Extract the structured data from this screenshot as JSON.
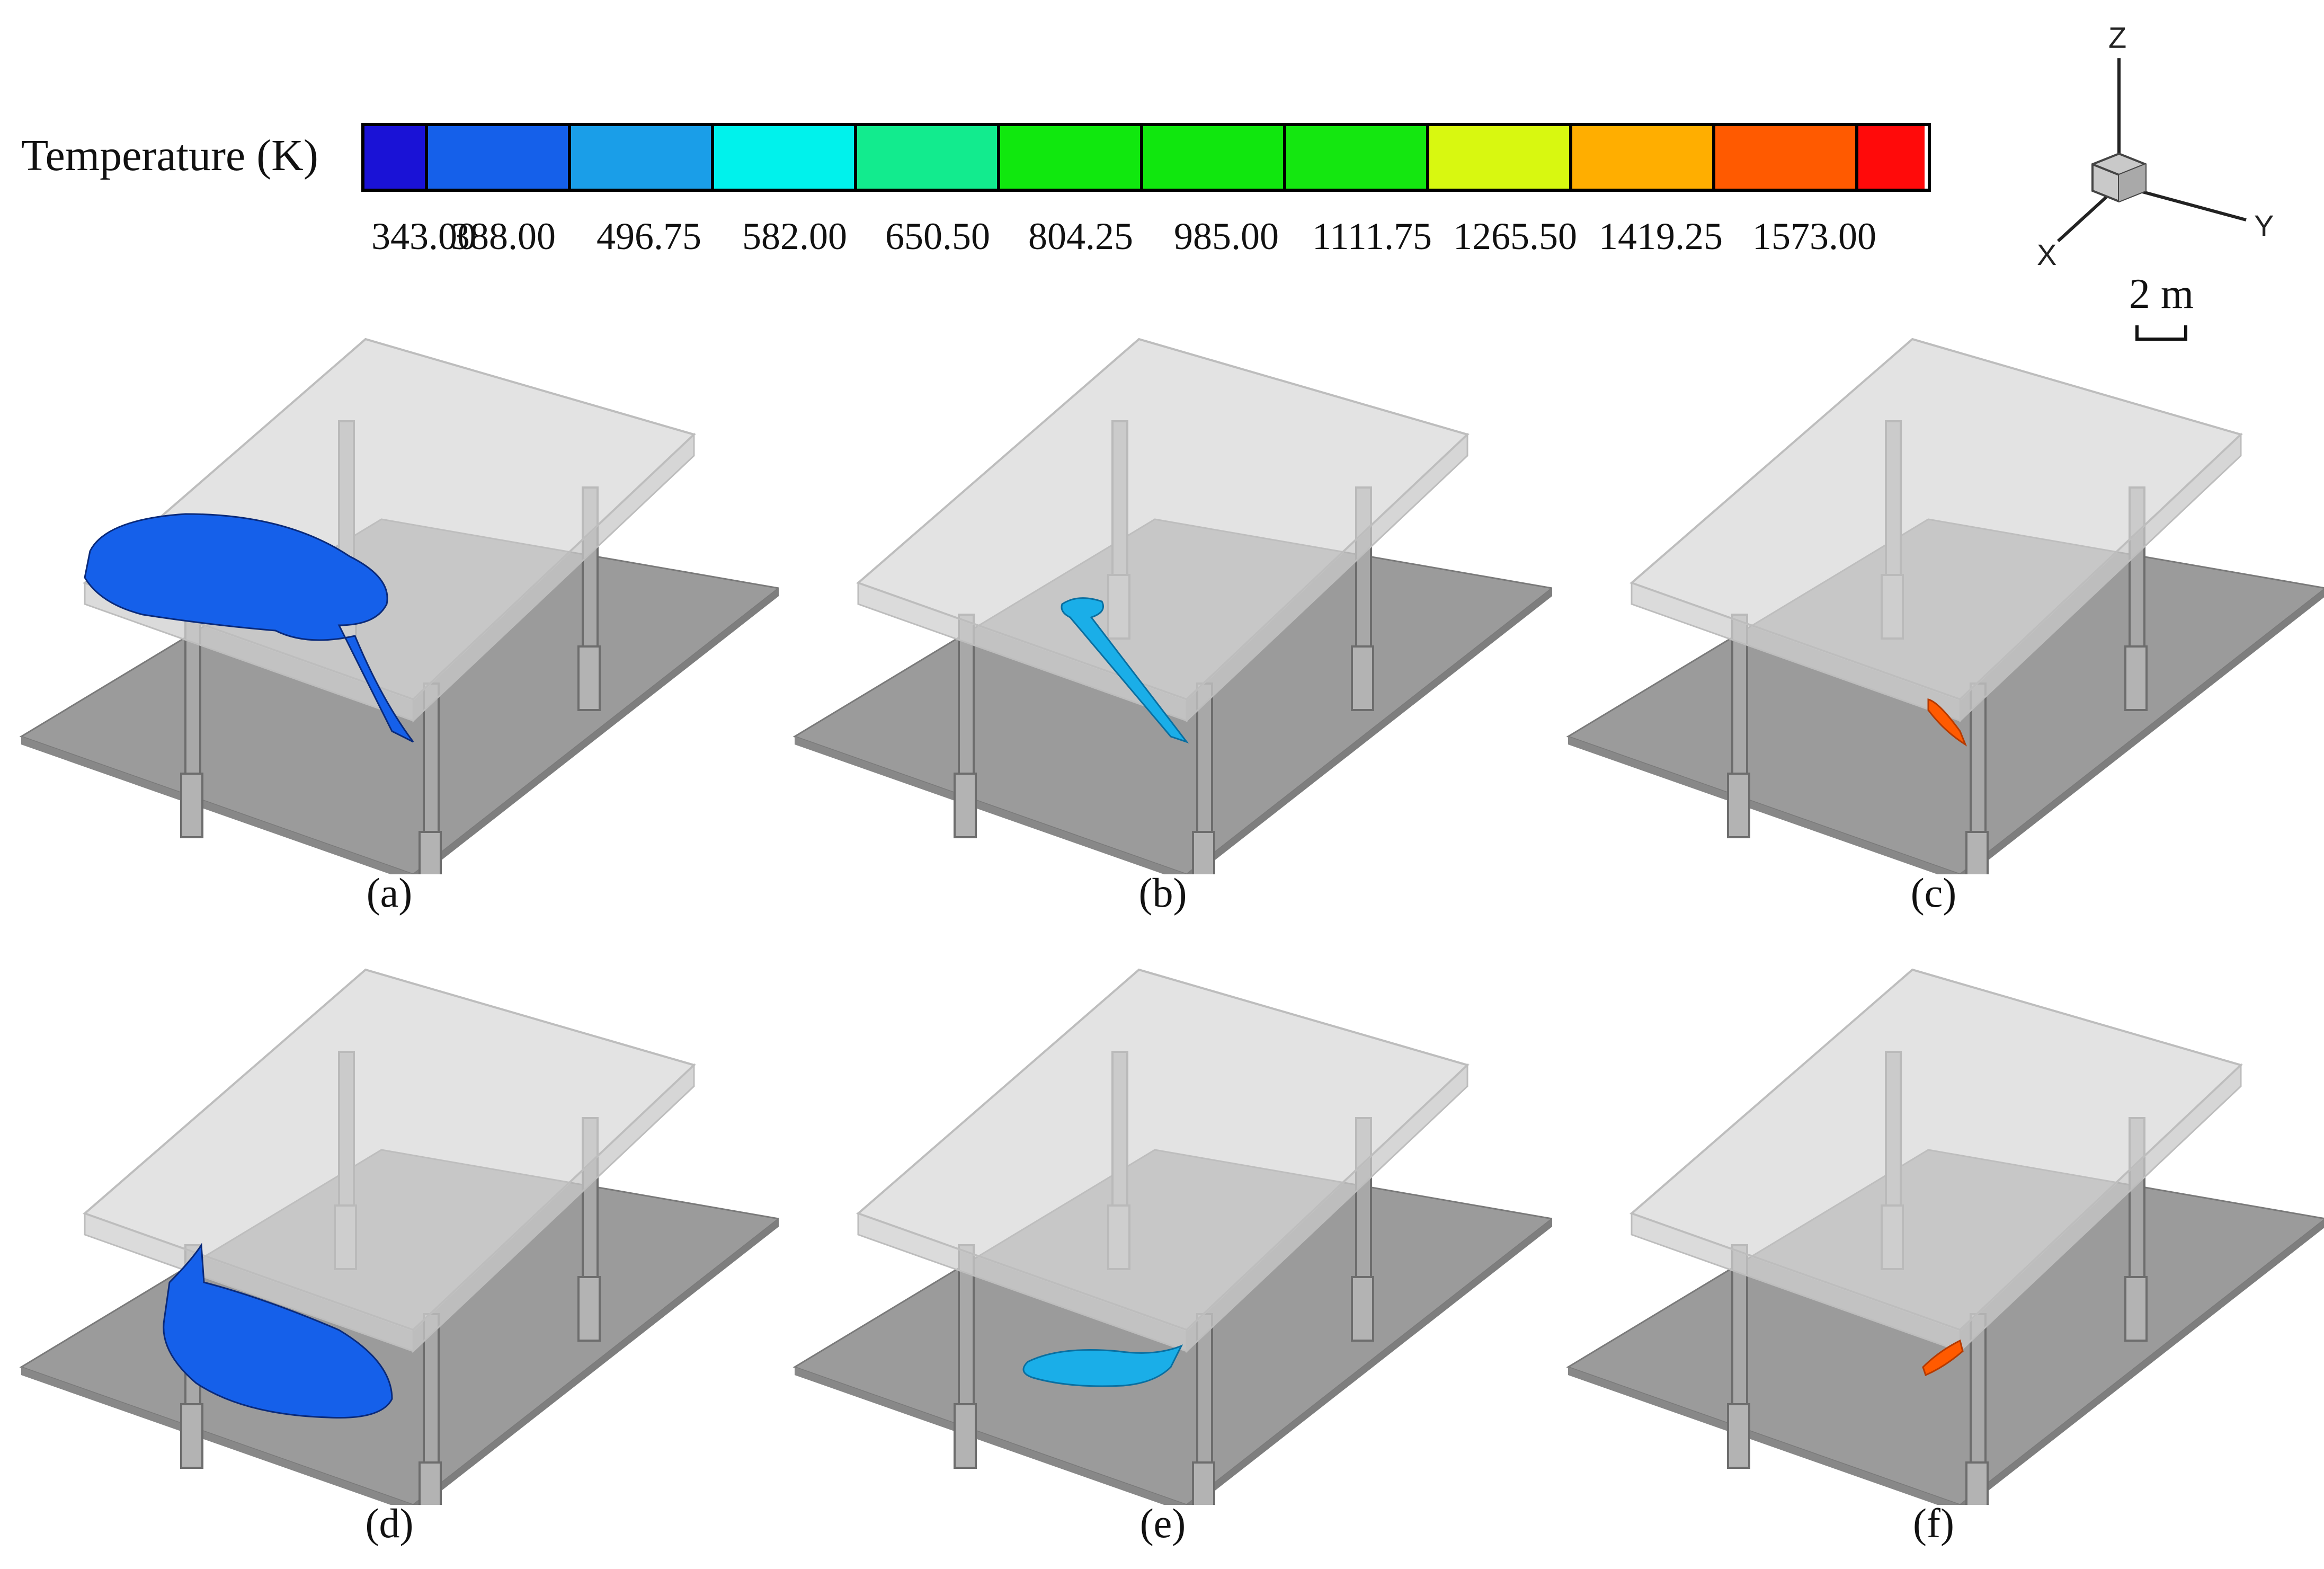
{
  "legend": {
    "title": "Temperature (K)",
    "colors": [
      "#1a12d6",
      "#1560ea",
      "#1a9ee8",
      "#00f2ec",
      "#12eb8e",
      "#10e80e",
      "#10e70e",
      "#14e710",
      "#d8f810",
      "#ffae00",
      "#ff5a00",
      "#ff0a0a"
    ],
    "ticks": [
      "343.00",
      "388.00",
      "496.75",
      "582.00",
      "650.50",
      "804.25",
      "985.00",
      "1111.75",
      "1265.50",
      "1419.25",
      "1573.00"
    ]
  },
  "axes": {
    "z": "Z",
    "x": "X",
    "y": "Y"
  },
  "scale_bar": {
    "label": "2 m"
  },
  "panels": [
    {
      "caption": "(a)",
      "plume_color": "#1560ea",
      "plume": "large-ceiling-jet"
    },
    {
      "caption": "(b)",
      "plume_color": "#1aaee8",
      "plume": "narrow-jet"
    },
    {
      "caption": "(c)",
      "plume_color": "#ff5a00",
      "plume": "small-jet"
    },
    {
      "caption": "(d)",
      "plume_color": "#1560ea",
      "plume": "large-ground-pool"
    },
    {
      "caption": "(e)",
      "plume_color": "#1aaee8",
      "plume": "ground-pool"
    },
    {
      "caption": "(f)",
      "plume_color": "#ff5a00",
      "plume": "small-ground-jet"
    }
  ]
}
